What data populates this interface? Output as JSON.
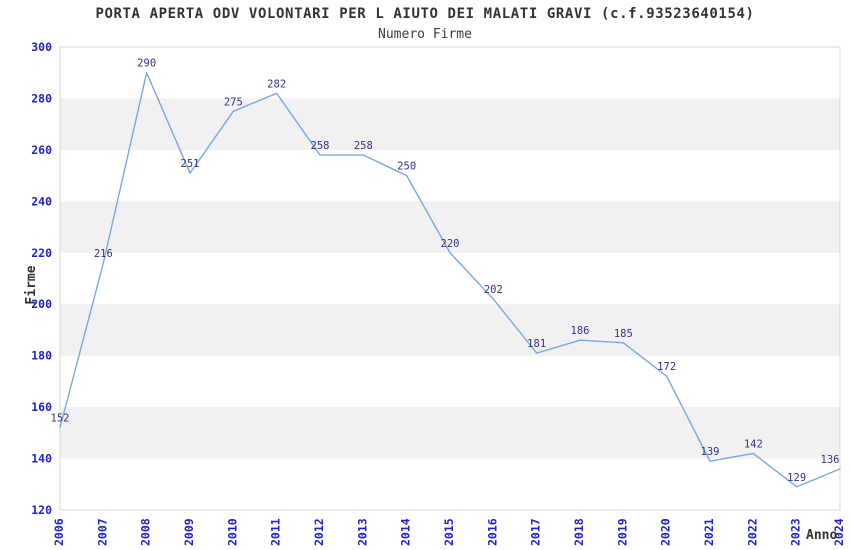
{
  "chart_data": {
    "type": "line",
    "title": "PORTA APERTA ODV VOLONTARI PER L AIUTO DEI MALATI GRAVI (c.f.93523640154)",
    "subtitle": "Numero Firme",
    "xlabel": "Anno",
    "ylabel": "Firme",
    "categories": [
      "2006",
      "2007",
      "2008",
      "2009",
      "2010",
      "2011",
      "2012",
      "2013",
      "2014",
      "2015",
      "2016",
      "2017",
      "2018",
      "2019",
      "2020",
      "2021",
      "2022",
      "2023",
      "2024"
    ],
    "values": [
      152,
      216,
      290,
      251,
      275,
      282,
      258,
      258,
      250,
      220,
      202,
      181,
      186,
      185,
      172,
      139,
      142,
      129,
      136
    ],
    "ylim": [
      120,
      300
    ],
    "ytick_step": 20,
    "grid": "alternating-horizontal-bands",
    "legend": "none",
    "point_labels": true,
    "colors": {
      "line": "#76a9e3",
      "tick_label": "#2222cc",
      "point_label": "#333388",
      "band": "#f1f1f1",
      "plot_border": "#d7d7d7",
      "title": "#333333",
      "axis_title": "#333333",
      "background": "#ffffff"
    }
  }
}
